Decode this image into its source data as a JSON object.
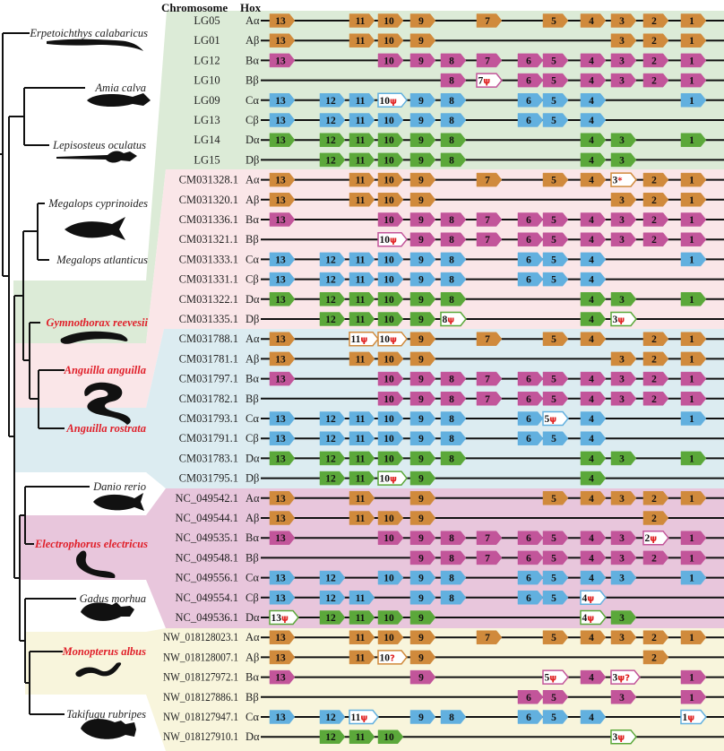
{
  "header": {
    "chromosome": "Chromosome",
    "hox": "Hox"
  },
  "colors": {
    "A": "#d08a3c",
    "B": "#c2559a",
    "C": "#62b0df",
    "D": "#5ba83a",
    "pseudo_mark": "#e02020",
    "band_green": "#dcebd7",
    "band_pink": "#fae6e8",
    "band_blue": "#dcecf1",
    "band_magenta": "#e8c6dc",
    "band_yellow": "#f8f5dc"
  },
  "species": [
    {
      "name": "Erpetoichthys calabaricus",
      "highlight": false,
      "icon": "reedfish-silhouette-icon"
    },
    {
      "name": "Amia calva",
      "highlight": false,
      "icon": "bowfin-silhouette-icon"
    },
    {
      "name": "Lepisosteus oculatus",
      "highlight": false,
      "icon": "gar-silhouette-icon"
    },
    {
      "name": "Megalops cyprinoides",
      "highlight": false,
      "icon": "tarpon-silhouette-icon"
    },
    {
      "name": "Megalops atlanticus",
      "highlight": false,
      "icon": ""
    },
    {
      "name": "Gymnothorax reevesii",
      "highlight": true,
      "icon": "moray-silhouette-icon"
    },
    {
      "name": "Anguilla anguilla",
      "highlight": true,
      "icon": "eel-silhouette-icon"
    },
    {
      "name": "Anguilla rostrata",
      "highlight": true,
      "icon": ""
    },
    {
      "name": "Danio rerio",
      "highlight": false,
      "icon": "zebrafish-silhouette-icon"
    },
    {
      "name": "Electrophorus electricus",
      "highlight": true,
      "icon": "electric-eel-silhouette-icon"
    },
    {
      "name": "Gadus morhua",
      "highlight": false,
      "icon": "cod-silhouette-icon"
    },
    {
      "name": "Monopterus albus",
      "highlight": true,
      "icon": "swamp-eel-silhouette-icon"
    },
    {
      "name": "Takifugu rubripes",
      "highlight": false,
      "icon": "pufferfish-silhouette-icon"
    }
  ],
  "rows": [
    {
      "chrom": "LG05",
      "hox": "Aα",
      "genes": [
        "13",
        "11",
        "10",
        "9",
        "7",
        "5",
        "4",
        "3",
        "2",
        "1"
      ]
    },
    {
      "chrom": "LG01",
      "hox": "Aβ",
      "genes": [
        "13",
        "11",
        "10",
        "9",
        "3",
        "2",
        "1"
      ]
    },
    {
      "chrom": "LG12",
      "hox": "Bα",
      "genes": [
        "13",
        "10",
        "9",
        "8",
        "7",
        "6",
        "5",
        "4",
        "3",
        "2",
        "1"
      ]
    },
    {
      "chrom": "LG10",
      "hox": "Bβ",
      "genes": [
        "8",
        "7ψ",
        "6",
        "5",
        "4",
        "3",
        "2",
        "1"
      ]
    },
    {
      "chrom": "LG09",
      "hox": "Cα",
      "genes": [
        "13",
        "12",
        "11",
        "10ψ",
        "9",
        "8",
        "6",
        "5",
        "4",
        "1"
      ]
    },
    {
      "chrom": "LG13",
      "hox": "Cβ",
      "genes": [
        "13",
        "12",
        "11",
        "10",
        "9",
        "8",
        "6",
        "5",
        "4"
      ]
    },
    {
      "chrom": "LG14",
      "hox": "Dα",
      "genes": [
        "13",
        "12",
        "11",
        "10",
        "9",
        "8",
        "4",
        "3",
        "1"
      ]
    },
    {
      "chrom": "LG15",
      "hox": "Dβ",
      "genes": [
        "12",
        "11",
        "10",
        "9",
        "8",
        "4",
        "3"
      ]
    },
    {
      "chrom": "CM031328.1",
      "hox": "Aα",
      "genes": [
        "13",
        "11",
        "10",
        "9",
        "7",
        "5",
        "4",
        "3*",
        "2",
        "1"
      ]
    },
    {
      "chrom": "CM031320.1",
      "hox": "Aβ",
      "genes": [
        "13",
        "11",
        "10",
        "9",
        "3",
        "2",
        "1"
      ]
    },
    {
      "chrom": "CM031336.1",
      "hox": "Bα",
      "genes": [
        "13",
        "10",
        "9",
        "8",
        "7",
        "6",
        "5",
        "4",
        "3",
        "2",
        "1"
      ]
    },
    {
      "chrom": "CM031321.1",
      "hox": "Bβ",
      "genes": [
        "10ψ",
        "9",
        "8",
        "7",
        "6",
        "5",
        "4",
        "3",
        "2",
        "1"
      ]
    },
    {
      "chrom": "CM031333.1",
      "hox": "Cα",
      "genes": [
        "13",
        "12",
        "11",
        "10",
        "9",
        "8",
        "6",
        "5",
        "4",
        "1"
      ]
    },
    {
      "chrom": "CM031331.1",
      "hox": "Cβ",
      "genes": [
        "13",
        "12",
        "11",
        "10",
        "9",
        "8",
        "6",
        "5",
        "4"
      ]
    },
    {
      "chrom": "CM031322.1",
      "hox": "Dα",
      "genes": [
        "13",
        "12",
        "11",
        "10",
        "9",
        "8",
        "4",
        "3",
        "1"
      ]
    },
    {
      "chrom": "CM031335.1",
      "hox": "Dβ",
      "genes": [
        "12",
        "11",
        "10",
        "9",
        "8ψ",
        "4",
        "3ψ"
      ]
    },
    {
      "chrom": "CM031788.1",
      "hox": "Aα",
      "genes": [
        "13",
        "11ψ",
        "10ψ",
        "9",
        "7",
        "5",
        "4",
        "2",
        "1"
      ]
    },
    {
      "chrom": "CM031781.1",
      "hox": "Aβ",
      "genes": [
        "13",
        "11",
        "10",
        "9",
        "3",
        "2",
        "1"
      ]
    },
    {
      "chrom": "CM031797.1",
      "hox": "Bα",
      "genes": [
        "13",
        "10",
        "9",
        "8",
        "7",
        "6",
        "5",
        "4",
        "3",
        "2",
        "1"
      ]
    },
    {
      "chrom": "CM031782.1",
      "hox": "Bβ",
      "genes": [
        "10",
        "9",
        "8",
        "7",
        "6",
        "5",
        "4",
        "3",
        "2",
        "1"
      ]
    },
    {
      "chrom": "CM031793.1",
      "hox": "Cα",
      "genes": [
        "13",
        "12",
        "11",
        "10",
        "9",
        "8",
        "6",
        "5ψ",
        "4",
        "1"
      ]
    },
    {
      "chrom": "CM031791.1",
      "hox": "Cβ",
      "genes": [
        "13",
        "12",
        "11",
        "10",
        "9",
        "8",
        "6",
        "5",
        "4"
      ]
    },
    {
      "chrom": "CM031783.1",
      "hox": "Dα",
      "genes": [
        "13",
        "12",
        "11",
        "10",
        "9",
        "8",
        "4",
        "3",
        "1"
      ]
    },
    {
      "chrom": "CM031795.1",
      "hox": "Dβ",
      "genes": [
        "12",
        "11",
        "10ψ",
        "9",
        "4"
      ]
    },
    {
      "chrom": "NC_049542.1",
      "hox": "Aα",
      "genes": [
        "13",
        "11",
        "9",
        "5",
        "4",
        "3",
        "2",
        "1"
      ]
    },
    {
      "chrom": "NC_049544.1",
      "hox": "Aβ",
      "genes": [
        "13",
        "11",
        "10",
        "9",
        "2"
      ]
    },
    {
      "chrom": "NC_049535.1",
      "hox": "Bα",
      "genes": [
        "13",
        "10",
        "9",
        "8",
        "7",
        "6",
        "5",
        "4",
        "3",
        "2ψ",
        "1"
      ]
    },
    {
      "chrom": "NC_049548.1",
      "hox": "Bβ",
      "genes": [
        "9",
        "8",
        "7",
        "6",
        "5",
        "4",
        "3",
        "2",
        "1"
      ]
    },
    {
      "chrom": "NC_049556.1",
      "hox": "Cα",
      "genes": [
        "13",
        "12",
        "10",
        "9",
        "8",
        "6",
        "5",
        "4",
        "3",
        "1"
      ]
    },
    {
      "chrom": "NC_049554.1",
      "hox": "Cβ",
      "genes": [
        "13",
        "12",
        "11",
        "9",
        "8",
        "6",
        "5",
        "4ψ"
      ]
    },
    {
      "chrom": "NC_049536.1",
      "hox": "Dα",
      "genes": [
        "13ψ",
        "12",
        "11",
        "10",
        "9",
        "4ψ",
        "3"
      ]
    },
    {
      "chrom": "NW_018128023.1",
      "hox": "Aα",
      "genes": [
        "13",
        "11",
        "10",
        "9",
        "7",
        "5",
        "4",
        "3",
        "2",
        "1"
      ]
    },
    {
      "chrom": "NW_018128007.1",
      "hox": "Aβ",
      "genes": [
        "13",
        "11",
        "10?",
        "9",
        "2"
      ]
    },
    {
      "chrom": "NW_018127972.1",
      "hox": "Bα",
      "genes": [
        "13",
        "9",
        "5ψ",
        "4",
        "3ψ?",
        "1"
      ]
    },
    {
      "chrom": "NW_018127886.1",
      "hox": "Bβ",
      "genes": [
        "6",
        "5",
        "3",
        "1"
      ]
    },
    {
      "chrom": "NW_018127947.1",
      "hox": "Cα",
      "genes": [
        "13",
        "12",
        "11ψ",
        "9",
        "8",
        "6",
        "5",
        "4",
        "1ψ"
      ]
    },
    {
      "chrom": "NW_018127910.1",
      "hox": "Dα",
      "genes": [
        "12",
        "11",
        "10",
        "3ψ"
      ]
    }
  ]
}
